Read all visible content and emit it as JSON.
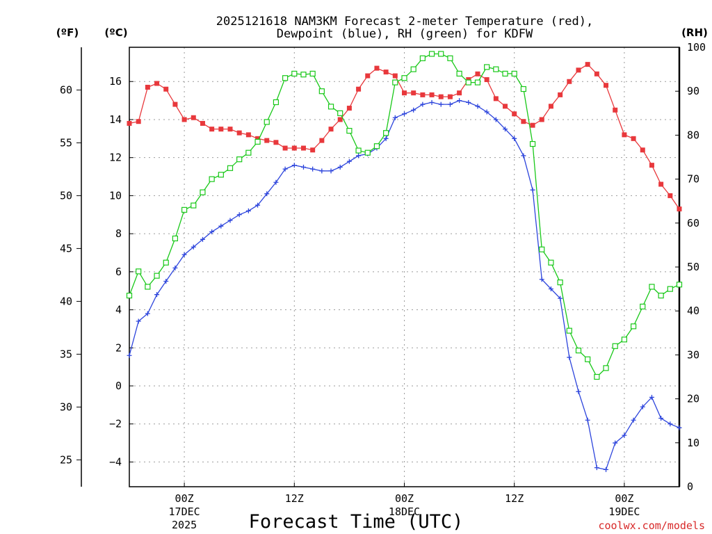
{
  "chart_data": {
    "type": "line",
    "title_line1": "2025121618 NAM3KM Forecast 2-meter Temperature (red),",
    "title_line2": "Dewpoint (blue), RH (green) for KDFW",
    "xlabel": "Forecast Time (UTC)",
    "left_unit_f": "(ºF)",
    "left_unit_c": "(ºC)",
    "right_unit": "(RH)",
    "credit": "coolwx.com/models",
    "x_range_hours": [
      -6,
      54
    ],
    "y_c_range": [
      -5.3,
      17.8
    ],
    "y_rh_range": [
      0,
      100
    ],
    "x_ticks": [
      {
        "hour": 0,
        "label": "00Z",
        "sub1": "17DEC",
        "sub2": "2025"
      },
      {
        "hour": 12,
        "label": "12Z",
        "sub1": "",
        "sub2": ""
      },
      {
        "hour": 24,
        "label": "00Z",
        "sub1": "18DEC",
        "sub2": ""
      },
      {
        "hour": 36,
        "label": "12Z",
        "sub1": "",
        "sub2": ""
      },
      {
        "hour": 48,
        "label": "00Z",
        "sub1": "19DEC",
        "sub2": ""
      }
    ],
    "y_ticks_c": [
      -4,
      -2,
      0,
      2,
      4,
      6,
      8,
      10,
      12,
      14,
      16
    ],
    "y_ticks_c_labels": [
      "−4",
      "−2",
      "0",
      "2",
      "4",
      "6",
      "8",
      "10",
      "12",
      "14",
      "16"
    ],
    "y_ticks_f": [
      25,
      30,
      35,
      40,
      45,
      50,
      55,
      60
    ],
    "y_ticks_f_labels": [
      "25",
      "30",
      "35",
      "40",
      "45",
      "50",
      "55",
      "60"
    ],
    "y_ticks_rh": [
      0,
      10,
      20,
      30,
      40,
      50,
      60,
      70,
      80,
      90,
      100
    ],
    "y_ticks_rh_labels": [
      "0",
      "10",
      "20",
      "30",
      "40",
      "50",
      "60",
      "70",
      "80",
      "90",
      "100"
    ],
    "hours": [
      -6,
      -5,
      -4,
      -3,
      -2,
      -1,
      0,
      1,
      2,
      3,
      4,
      5,
      6,
      7,
      8,
      9,
      10,
      11,
      12,
      13,
      14,
      15,
      16,
      17,
      18,
      19,
      20,
      21,
      22,
      23,
      24,
      25,
      26,
      27,
      28,
      29,
      30,
      31,
      32,
      33,
      34,
      35,
      36,
      37,
      38,
      39,
      40,
      41,
      42,
      43,
      44,
      45,
      46,
      47,
      48,
      49,
      50,
      51,
      52,
      53,
      54
    ],
    "series": [
      {
        "name": "2-meter Temperature",
        "unit": "C",
        "color": "#e8383c",
        "marker": "filled-square",
        "values": [
          13.8,
          13.9,
          15.7,
          15.9,
          15.6,
          14.8,
          14.0,
          14.1,
          13.8,
          13.5,
          13.5,
          13.5,
          13.3,
          13.2,
          13.0,
          12.9,
          12.8,
          12.5,
          12.5,
          12.5,
          12.4,
          12.9,
          13.5,
          14.0,
          14.6,
          15.6,
          16.3,
          16.7,
          16.5,
          16.3,
          15.4,
          15.4,
          15.3,
          15.3,
          15.2,
          15.2,
          15.4,
          16.1,
          16.4,
          16.1,
          15.1,
          14.7,
          14.3,
          13.9,
          13.7,
          14.0,
          14.7,
          15.3,
          16.0,
          16.6,
          16.9,
          16.4,
          15.8,
          14.5,
          13.2,
          13.0,
          12.4,
          11.6,
          10.6,
          10.0,
          9.3
        ]
      },
      {
        "name": "Dewpoint",
        "unit": "C",
        "color": "#2c44dc",
        "marker": "plus",
        "values": [
          1.6,
          3.4,
          3.8,
          4.8,
          5.5,
          6.2,
          6.9,
          7.3,
          7.7,
          8.1,
          8.4,
          8.7,
          9.0,
          9.2,
          9.5,
          10.1,
          10.7,
          11.4,
          11.6,
          11.5,
          11.4,
          11.3,
          11.3,
          11.5,
          11.8,
          12.1,
          12.2,
          12.5,
          13.0,
          14.1,
          14.3,
          14.5,
          14.8,
          14.9,
          14.8,
          14.8,
          15.0,
          14.9,
          14.7,
          14.4,
          14.0,
          13.5,
          13.0,
          12.1,
          10.3,
          5.6,
          5.1,
          4.6,
          1.5,
          -0.3,
          -1.8,
          -4.3,
          -4.4,
          -3.0,
          -2.6,
          -1.8,
          -1.1,
          -0.6,
          -1.7,
          -2.0,
          -2.2
        ]
      },
      {
        "name": "Relative Humidity",
        "unit": "%",
        "color": "#18c818",
        "marker": "open-square",
        "values": [
          43.5,
          49.0,
          45.5,
          48.0,
          51.0,
          56.5,
          63.0,
          64.0,
          67.0,
          70.0,
          71.0,
          72.5,
          74.5,
          76.0,
          78.5,
          83.0,
          87.5,
          93.0,
          94.0,
          93.8,
          94.0,
          90.0,
          86.5,
          85.0,
          81.0,
          76.5,
          76.0,
          77.5,
          80.5,
          92.0,
          93.0,
          95.0,
          97.5,
          98.5,
          98.5,
          97.5,
          94.0,
          92.0,
          92.0,
          95.5,
          95.0,
          94.0,
          94.0,
          90.5,
          78.0,
          54.0,
          51.0,
          46.5,
          35.5,
          31.0,
          29.0,
          25.0,
          27.0,
          32.0,
          33.5,
          36.5,
          41.0,
          45.5,
          43.5,
          45.0,
          46.0
        ]
      }
    ]
  }
}
